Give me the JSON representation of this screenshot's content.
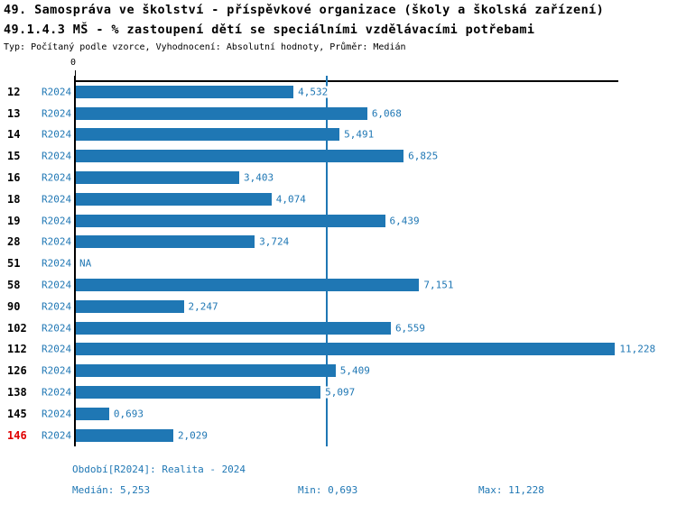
{
  "title": {
    "line1": "49. Samospráva ve školství - příspěvkové organizace (školy a školská zařízení)",
    "line2": "49.1.4.3 MŠ - % zastoupení dětí se speciálními vzdělávacími potřebami",
    "meta": "Typ: Počítaný podle vzorce, Vyhodnocení: Absolutní hodnoty, Průměr: Medián"
  },
  "chart_data": {
    "type": "bar",
    "orientation": "horizontal",
    "title": "49.1.4.3 MŠ - % zastoupení dětí se speciálními vzdělávacími potřebami",
    "value_axis": {
      "position": "top",
      "tick_labels": [
        "0"
      ],
      "range": [
        0,
        11.39
      ]
    },
    "median_line_value": 5.253,
    "na_text": "NA",
    "rows": [
      {
        "id": "12",
        "period": "R2024",
        "value": 4.532,
        "label": "4,532",
        "highlight": false
      },
      {
        "id": "13",
        "period": "R2024",
        "value": 6.068,
        "label": "6,068",
        "highlight": false
      },
      {
        "id": "14",
        "period": "R2024",
        "value": 5.491,
        "label": "5,491",
        "highlight": false
      },
      {
        "id": "15",
        "period": "R2024",
        "value": 6.825,
        "label": "6,825",
        "highlight": false
      },
      {
        "id": "16",
        "period": "R2024",
        "value": 3.403,
        "label": "3,403",
        "highlight": false
      },
      {
        "id": "18",
        "period": "R2024",
        "value": 4.074,
        "label": "4,074",
        "highlight": false
      },
      {
        "id": "19",
        "period": "R2024",
        "value": 6.439,
        "label": "6,439",
        "highlight": false
      },
      {
        "id": "28",
        "period": "R2024",
        "value": 3.724,
        "label": "3,724",
        "highlight": false
      },
      {
        "id": "51",
        "period": "R2024",
        "value": null,
        "label": "NA",
        "highlight": false
      },
      {
        "id": "58",
        "period": "R2024",
        "value": 7.151,
        "label": "7,151",
        "highlight": false
      },
      {
        "id": "90",
        "period": "R2024",
        "value": 2.247,
        "label": "2,247",
        "highlight": false
      },
      {
        "id": "102",
        "period": "R2024",
        "value": 6.559,
        "label": "6,559",
        "highlight": false
      },
      {
        "id": "112",
        "period": "R2024",
        "value": 11.228,
        "label": "11,228",
        "highlight": false
      },
      {
        "id": "126",
        "period": "R2024",
        "value": 5.409,
        "label": "5,409",
        "highlight": false
      },
      {
        "id": "138",
        "period": "R2024",
        "value": 5.097,
        "label": "5,097",
        "highlight": false
      },
      {
        "id": "145",
        "period": "R2024",
        "value": 0.693,
        "label": "0,693",
        "highlight": false
      },
      {
        "id": "146",
        "period": "R2024",
        "value": 2.029,
        "label": "2,029",
        "highlight": true
      }
    ],
    "stats": {
      "median": 5.253,
      "min": 0.693,
      "max": 11.228
    }
  },
  "footer": {
    "period_info": "Období[R2024]: Realita - 2024",
    "median": "Medián: 5,253",
    "min": "Min: 0,693",
    "max": "Max: 11,228"
  },
  "colors": {
    "accent": "#1f77b4",
    "highlight_red": "#e00000",
    "axis": "#000000",
    "background": "#ffffff"
  }
}
